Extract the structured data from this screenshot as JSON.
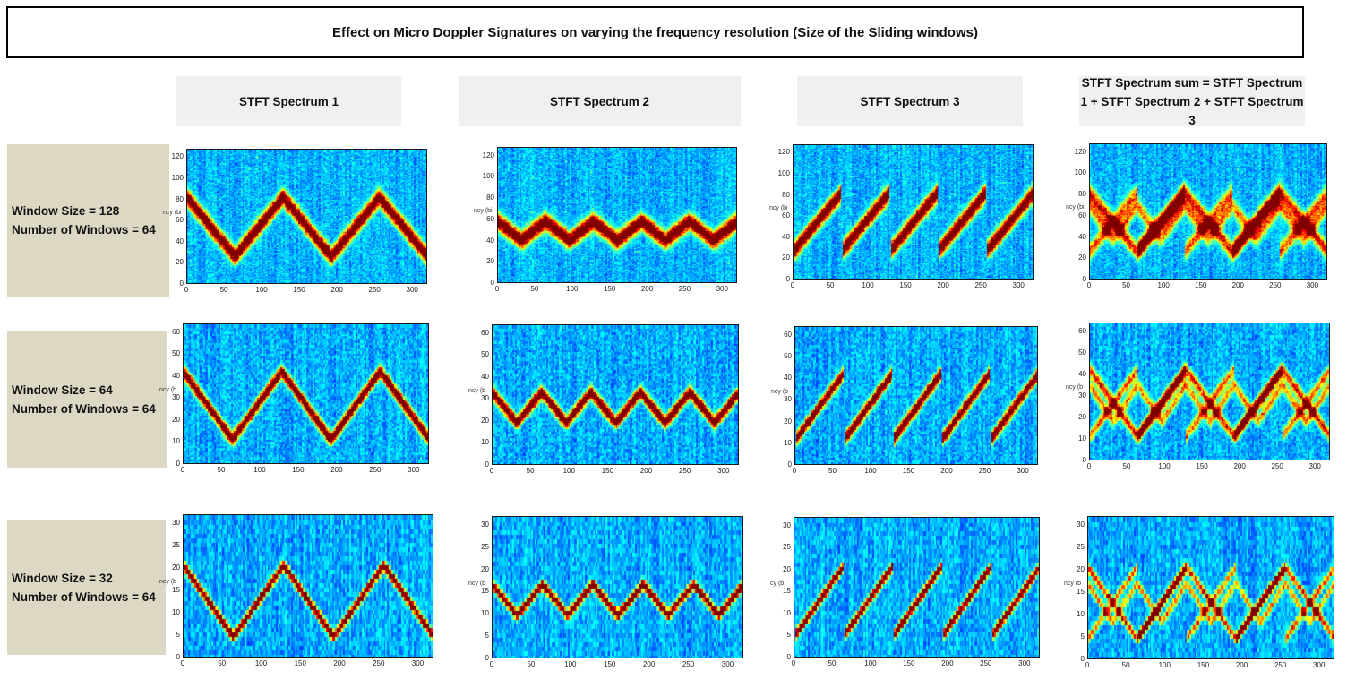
{
  "title": "Effect on Micro Doppler Signatures on varying the frequency resolution (Size of the Sliding windows)",
  "column_headers": [
    "STFT Spectrum 1",
    "STFT Spectrum 2",
    "STFT Spectrum 3",
    "STFT Spectrum sum = STFT Spectrum 1 + STFT Spectrum 2 + STFT Spectrum 3"
  ],
  "row_labels": [
    {
      "window_size": "Window Size = 128",
      "num_windows": "Number of Windows = 64"
    },
    {
      "window_size": "Window Size = 64",
      "num_windows": "Number of Windows = 64"
    },
    {
      "window_size": "Window Size = 32",
      "num_windows": "Number of Windows = 64"
    }
  ],
  "colors": {
    "background_low": "#0a1aa8",
    "colormap": "jet",
    "row_label_bg": "#ddd8c4",
    "header_bg": "#f0f0f0"
  },
  "chart_data": [
    {
      "type": "heatmap",
      "row": 0,
      "col": 0,
      "pattern": "triangle",
      "xlim": [
        0,
        320
      ],
      "ylim": [
        0,
        128
      ],
      "xticks": [
        0,
        50,
        100,
        150,
        200,
        250,
        300
      ],
      "yticks": [
        0,
        20,
        40,
        60,
        80,
        100,
        120
      ],
      "ylabel_fragment": "ncy (bi",
      "signal": {
        "min": 28,
        "max": 84,
        "period": 128,
        "phase_start": "high"
      }
    },
    {
      "type": "heatmap",
      "row": 0,
      "col": 1,
      "pattern": "triangle",
      "xlim": [
        0,
        320
      ],
      "ylim": [
        0,
        128
      ],
      "xticks": [
        0,
        50,
        100,
        150,
        200,
        250,
        300
      ],
      "yticks": [
        0,
        20,
        40,
        60,
        80,
        100,
        120
      ],
      "ylabel_fragment": "ncy (bi",
      "signal": {
        "min": 42,
        "max": 60,
        "period": 64,
        "phase_start": "high"
      }
    },
    {
      "type": "heatmap",
      "row": 0,
      "col": 2,
      "pattern": "sawtooth",
      "xlim": [
        0,
        320
      ],
      "ylim": [
        0,
        128
      ],
      "xticks": [
        0,
        50,
        100,
        150,
        200,
        250,
        300
      ],
      "yticks": [
        0,
        20,
        40,
        60,
        80,
        100,
        120
      ],
      "ylabel_fragment": "ncy (bi",
      "signal": {
        "min": 28,
        "max": 84,
        "period": 64
      }
    },
    {
      "type": "heatmap",
      "row": 0,
      "col": 3,
      "pattern": "sum",
      "xlim": [
        0,
        320
      ],
      "ylim": [
        0,
        128
      ],
      "xticks": [
        0,
        50,
        100,
        150,
        200,
        250,
        300
      ],
      "yticks": [
        0,
        20,
        40,
        60,
        80,
        100,
        120
      ],
      "ylabel_fragment": "ncy (bi",
      "signal": {
        "min": 28,
        "max": 84,
        "period": 128
      }
    },
    {
      "type": "heatmap",
      "row": 1,
      "col": 0,
      "pattern": "triangle",
      "xlim": [
        0,
        320
      ],
      "ylim": [
        0,
        64
      ],
      "xticks": [
        0,
        50,
        100,
        150,
        200,
        250,
        300
      ],
      "yticks": [
        0,
        10,
        20,
        30,
        40,
        50,
        60
      ],
      "ylabel_fragment": "ncy (b",
      "signal": {
        "min": 12,
        "max": 43,
        "period": 128,
        "phase_start": "high"
      }
    },
    {
      "type": "heatmap",
      "row": 1,
      "col": 1,
      "pattern": "triangle",
      "xlim": [
        0,
        320
      ],
      "ylim": [
        0,
        64
      ],
      "xticks": [
        0,
        50,
        100,
        150,
        200,
        250,
        300
      ],
      "yticks": [
        0,
        10,
        20,
        30,
        40,
        50,
        60
      ],
      "ylabel_fragment": "ncy (b",
      "signal": {
        "min": 20,
        "max": 34,
        "period": 64,
        "phase_start": "high"
      }
    },
    {
      "type": "heatmap",
      "row": 1,
      "col": 2,
      "pattern": "sawtooth",
      "xlim": [
        0,
        320
      ],
      "ylim": [
        0,
        64
      ],
      "xticks": [
        0,
        50,
        100,
        150,
        200,
        250,
        300
      ],
      "yticks": [
        0,
        10,
        20,
        30,
        40,
        50,
        60
      ],
      "ylabel_fragment": "ncy (b",
      "signal": {
        "min": 12,
        "max": 43,
        "period": 64
      }
    },
    {
      "type": "heatmap",
      "row": 1,
      "col": 3,
      "pattern": "sum",
      "xlim": [
        0,
        320
      ],
      "ylim": [
        0,
        64
      ],
      "xticks": [
        0,
        50,
        100,
        150,
        200,
        250,
        300
      ],
      "yticks": [
        0,
        10,
        20,
        30,
        40,
        50,
        60
      ],
      "ylabel_fragment": "ncy (b",
      "signal": {
        "min": 12,
        "max": 43,
        "period": 128
      }
    },
    {
      "type": "heatmap",
      "row": 2,
      "col": 0,
      "pattern": "triangle",
      "xlim": [
        0,
        320
      ],
      "ylim": [
        0,
        32
      ],
      "xticks": [
        0,
        50,
        100,
        150,
        200,
        250,
        300
      ],
      "yticks": [
        0,
        5,
        10,
        15,
        20,
        25,
        30
      ],
      "ylabel_fragment": "ncy (b",
      "signal": {
        "min": 5,
        "max": 21,
        "period": 128,
        "phase_start": "high"
      }
    },
    {
      "type": "heatmap",
      "row": 2,
      "col": 1,
      "pattern": "triangle",
      "xlim": [
        0,
        320
      ],
      "ylim": [
        0,
        32
      ],
      "xticks": [
        0,
        50,
        100,
        150,
        200,
        250,
        300
      ],
      "yticks": [
        0,
        5,
        10,
        15,
        20,
        25,
        30
      ],
      "ylabel_fragment": "ncy (b",
      "signal": {
        "min": 10,
        "max": 17,
        "period": 64,
        "phase_start": "high"
      }
    },
    {
      "type": "heatmap",
      "row": 2,
      "col": 2,
      "pattern": "sawtooth",
      "xlim": [
        0,
        320
      ],
      "ylim": [
        0,
        32
      ],
      "xticks": [
        0,
        50,
        100,
        150,
        200,
        250,
        300
      ],
      "yticks": [
        0,
        5,
        10,
        15,
        20,
        25,
        30
      ],
      "ylabel_fragment": "cy (b",
      "signal": {
        "min": 5,
        "max": 21,
        "period": 64
      }
    },
    {
      "type": "heatmap",
      "row": 2,
      "col": 3,
      "pattern": "sum",
      "xlim": [
        0,
        320
      ],
      "ylim": [
        0,
        32
      ],
      "xticks": [
        0,
        50,
        100,
        150,
        200,
        250,
        300
      ],
      "yticks": [
        0,
        5,
        10,
        15,
        20,
        25,
        30
      ],
      "ylabel_fragment": "ncy (b",
      "signal": {
        "min": 5,
        "max": 21,
        "period": 128
      }
    }
  ]
}
